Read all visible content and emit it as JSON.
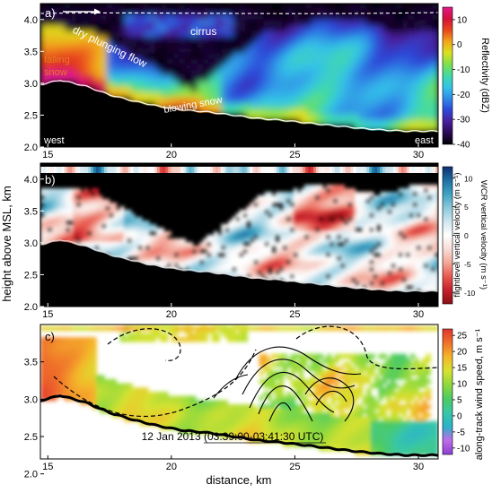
{
  "chart_data": [
    {
      "panel": "a",
      "type": "heatmap",
      "title": "a)",
      "variable": "Reflectivity (dBZ)",
      "colorbar": {
        "label": "Reflectivity (dBZ)",
        "ticks": [
          10,
          0,
          -10,
          -20,
          -30,
          -40
        ],
        "range": [
          -40,
          15
        ],
        "colors": [
          "#000000",
          "#2a0a55",
          "#4a1f9c",
          "#2c48d8",
          "#2f8ce6",
          "#34c3e8",
          "#40d9a8",
          "#7ee04d",
          "#d9e21f",
          "#f2a51c",
          "#e8461c",
          "#d3113a",
          "#e01a8a"
        ]
      },
      "x_ticks": [
        15,
        20,
        25,
        30
      ],
      "y_ticks": [
        "2.0",
        "2.5",
        "3.0",
        "3.5",
        "4.0"
      ],
      "xlim": [
        14.7,
        30.8
      ],
      "ylim": [
        2.0,
        4.25
      ],
      "annotations": [
        "cirrus",
        "dry plunging flow",
        "falling snow",
        "blowing snow",
        "west",
        "east"
      ],
      "terrain_height_km": [
        [
          14.7,
          2.98
        ],
        [
          15.5,
          3.05
        ],
        [
          16.5,
          2.96
        ],
        [
          17.5,
          2.82
        ],
        [
          18.5,
          2.72
        ],
        [
          19.5,
          2.64
        ],
        [
          20.5,
          2.58
        ],
        [
          21.5,
          2.55
        ],
        [
          22.5,
          2.5
        ],
        [
          23.5,
          2.45
        ],
        [
          24.5,
          2.42
        ],
        [
          25.5,
          2.38
        ],
        [
          26.5,
          2.34
        ],
        [
          27.5,
          2.3
        ],
        [
          28.5,
          2.27
        ],
        [
          29.5,
          2.25
        ],
        [
          30.8,
          2.25
        ]
      ]
    },
    {
      "panel": "b",
      "type": "heatmap",
      "title": "b)",
      "variable": "WCR vertical velocity (m s⁻¹)",
      "colorbar_left": {
        "label": "flightlevel vertical velocity (m s⁻¹)",
        "ticks": [
          10,
          5,
          0,
          -5,
          -10
        ]
      },
      "colorbar_right": {
        "label": "WCR vertical velocity (m s⁻¹)",
        "ticks": [
          10,
          5,
          0,
          -5,
          -10
        ]
      },
      "colorbar": {
        "range": [
          -12,
          12
        ],
        "colors": [
          "#8a0f12",
          "#c51f2a",
          "#e8594f",
          "#f3a89a",
          "#f7dcd6",
          "#ffffff",
          "#cfe6ef",
          "#8cc9dc",
          "#3ea3c3",
          "#1d6fa3",
          "#0d2f6e"
        ]
      },
      "x_ticks": [
        15,
        20,
        25,
        30
      ],
      "y_ticks": [
        "2.0",
        "2.5",
        "3.0",
        "3.5",
        "4.0"
      ],
      "xlim": [
        14.7,
        30.8
      ],
      "ylim": [
        2.0,
        4.25
      ]
    },
    {
      "panel": "c",
      "type": "heatmap",
      "title": "c)",
      "variable": "along-track wind speed, m s⁻¹",
      "colorbar": {
        "label": "along-track wind speed, m s⁻¹",
        "ticks": [
          25,
          20,
          15,
          10,
          5,
          0,
          -5,
          -10
        ],
        "range": [
          -12,
          27
        ],
        "colors": [
          "#8b3fd1",
          "#c06ce8",
          "#2ab3c9",
          "#38c7a6",
          "#4ecb62",
          "#8fd93d",
          "#d7e230",
          "#f5b62a",
          "#f0712a",
          "#e0342e"
        ]
      },
      "x_ticks": [
        15,
        20,
        25,
        30
      ],
      "y_ticks": [
        "2.0",
        "2.5",
        "3.0",
        "3.5"
      ],
      "xlim": [
        14.7,
        30.8
      ],
      "ylim": [
        2.2,
        4.0
      ],
      "subtitle": "12 Jan 2013 (03:39:00-03:41:30 UTC)"
    }
  ],
  "shared": {
    "ylabel": "height above MSL, km",
    "xlabel": "distance, km"
  }
}
